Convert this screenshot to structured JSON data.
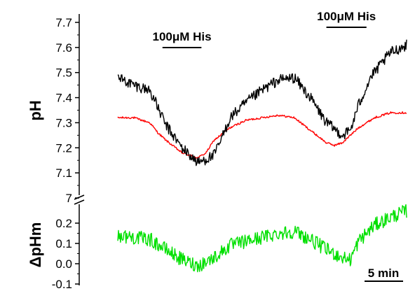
{
  "chart_data": [
    {
      "type": "line",
      "ylabel": "pH",
      "ylim": [
        6.98,
        7.72
      ],
      "y_ticks": [
        "7.7",
        "7.6",
        "7.5",
        "7.4",
        "7.3",
        "7.2",
        "7.1",
        "7"
      ],
      "x_unit": "min",
      "xlim": [
        0,
        36
      ],
      "series": [
        {
          "color": "#000000",
          "x": [
            0,
            2,
            4,
            5,
            6,
            8,
            10,
            12,
            13,
            14,
            16,
            18,
            20,
            22,
            24,
            26,
            28,
            29,
            30,
            31.5,
            33,
            34,
            36
          ],
          "y": [
            7.48,
            7.45,
            7.43,
            7.36,
            7.29,
            7.2,
            7.14,
            7.17,
            7.24,
            7.32,
            7.38,
            7.43,
            7.47,
            7.48,
            7.4,
            7.3,
            7.25,
            7.27,
            7.37,
            7.48,
            7.54,
            7.58,
            7.61
          ]
        },
        {
          "color": "#ff0000",
          "x": [
            0,
            2,
            4,
            5,
            6,
            8,
            10,
            11,
            12,
            14,
            16,
            18,
            20,
            22,
            24,
            26,
            27,
            28,
            30,
            32,
            34,
            36
          ],
          "y": [
            7.32,
            7.32,
            7.3,
            7.26,
            7.23,
            7.18,
            7.16,
            7.18,
            7.23,
            7.28,
            7.31,
            7.32,
            7.33,
            7.32,
            7.27,
            7.22,
            7.21,
            7.22,
            7.28,
            7.32,
            7.34,
            7.34
          ]
        }
      ]
    },
    {
      "type": "line",
      "ylabel": "ΔpHm",
      "ylim": [
        -0.1,
        0.3
      ],
      "y_ticks": [
        "0.2",
        "0.1",
        "0.0",
        "-0.1"
      ],
      "x_unit": "min",
      "xlim": [
        0,
        36
      ],
      "series": [
        {
          "color": "#00e000",
          "x": [
            0,
            2,
            4,
            6,
            8,
            10,
            12,
            14,
            16,
            18,
            20,
            22,
            24,
            26,
            28,
            29,
            30,
            32,
            34,
            36
          ],
          "y": [
            0.14,
            0.13,
            0.12,
            0.07,
            0.02,
            -0.01,
            0.03,
            0.09,
            0.11,
            0.13,
            0.15,
            0.16,
            0.12,
            0.07,
            0.03,
            0.02,
            0.11,
            0.19,
            0.23,
            0.26
          ]
        }
      ]
    }
  ],
  "annotations": [
    {
      "text": "100μM His",
      "start": 4,
      "end": 12
    },
    {
      "text": "100μM His",
      "start": 26,
      "end": 31
    }
  ],
  "scale_bar": {
    "label": "5 min",
    "minutes": 5
  },
  "axis_break_label": "7"
}
